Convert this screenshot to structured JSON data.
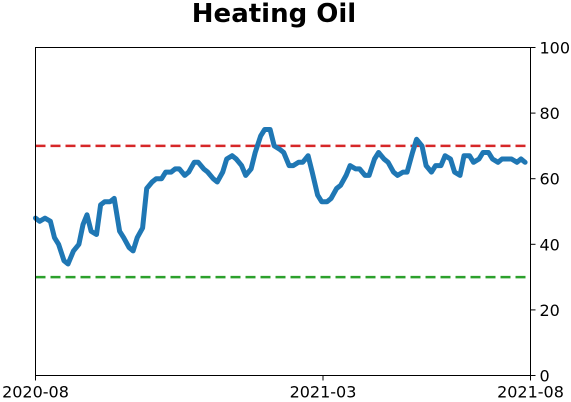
{
  "chart_data": {
    "type": "line",
    "title": "Heating Oil",
    "xlabel": "",
    "ylabel": "",
    "x_range": [
      "2020-08",
      "2021-08"
    ],
    "ylim": [
      0,
      100
    ],
    "y_axis_side": "right",
    "x_ticks": [
      "2020-08",
      "2021-03",
      "2021-08"
    ],
    "y_ticks": [
      0,
      20,
      40,
      60,
      80,
      100
    ],
    "grid": false,
    "legend": "none",
    "reference_lines": [
      {
        "y": 70,
        "color": "#d62728",
        "style": "dashed"
      },
      {
        "y": 30,
        "color": "#2ca02c",
        "style": "dashed"
      }
    ],
    "series": [
      {
        "color": "#1f77b4",
        "x": [
          "2020-08-01",
          "2020-08-04",
          "2020-08-08",
          "2020-08-12",
          "2020-08-15",
          "2020-08-18",
          "2020-08-22",
          "2020-08-25",
          "2020-08-29",
          "2020-09-02",
          "2020-09-05",
          "2020-09-08",
          "2020-09-11",
          "2020-09-15",
          "2020-09-18",
          "2020-09-21",
          "2020-09-25",
          "2020-09-28",
          "2020-10-02",
          "2020-10-05",
          "2020-10-09",
          "2020-10-12",
          "2020-10-15",
          "2020-10-19",
          "2020-10-22",
          "2020-10-26",
          "2020-10-29",
          "2020-11-02",
          "2020-11-05",
          "2020-11-09",
          "2020-11-12",
          "2020-11-15",
          "2020-11-19",
          "2020-11-22",
          "2020-11-26",
          "2020-11-29",
          "2020-12-03",
          "2020-12-06",
          "2020-12-10",
          "2020-12-13",
          "2020-12-17",
          "2020-12-20",
          "2020-12-24",
          "2020-12-27",
          "2020-12-31",
          "2021-01-03",
          "2021-01-07",
          "2021-01-10",
          "2021-01-14",
          "2021-01-17",
          "2021-01-21",
          "2021-01-24",
          "2021-01-28",
          "2021-01-31",
          "2021-02-04",
          "2021-02-07",
          "2021-02-11",
          "2021-02-14",
          "2021-02-18",
          "2021-02-21",
          "2021-02-25",
          "2021-02-28",
          "2021-03-04",
          "2021-03-07",
          "2021-03-11",
          "2021-03-14",
          "2021-03-18",
          "2021-03-21",
          "2021-03-25",
          "2021-03-28",
          "2021-04-01",
          "2021-04-04",
          "2021-04-08",
          "2021-04-11",
          "2021-04-15",
          "2021-04-18",
          "2021-04-22",
          "2021-04-25",
          "2021-04-29",
          "2021-05-02",
          "2021-05-06",
          "2021-05-09",
          "2021-05-13",
          "2021-05-16",
          "2021-05-20",
          "2021-05-23",
          "2021-05-27",
          "2021-05-30",
          "2021-06-03",
          "2021-06-06",
          "2021-06-10",
          "2021-06-13",
          "2021-06-17",
          "2021-06-20",
          "2021-06-24",
          "2021-06-27",
          "2021-07-01",
          "2021-07-04",
          "2021-07-08",
          "2021-07-11",
          "2021-07-15",
          "2021-07-18",
          "2021-07-22",
          "2021-07-25",
          "2021-07-28"
        ],
        "values": [
          48,
          47,
          48,
          47,
          42,
          40,
          35,
          34,
          38,
          40,
          46,
          49,
          44,
          43,
          52,
          53,
          53,
          54,
          44,
          42,
          39,
          38,
          42,
          45,
          57,
          59,
          60,
          60,
          62,
          62,
          63,
          63,
          61,
          62,
          65,
          65,
          63,
          62,
          60,
          59,
          62,
          66,
          67,
          66,
          64,
          61,
          63,
          68,
          73,
          75,
          75,
          70,
          69,
          68,
          64,
          64,
          65,
          65,
          67,
          62,
          55,
          53,
          53,
          54,
          57,
          58,
          61,
          64,
          63,
          63,
          61,
          61,
          66,
          68,
          66,
          65,
          62,
          61,
          62,
          62,
          68,
          72,
          70,
          64,
          62,
          64,
          64,
          67,
          66,
          62,
          61,
          67,
          67,
          65,
          66,
          68,
          68,
          66,
          65,
          66,
          66,
          66,
          65,
          66,
          65
        ]
      }
    ]
  }
}
